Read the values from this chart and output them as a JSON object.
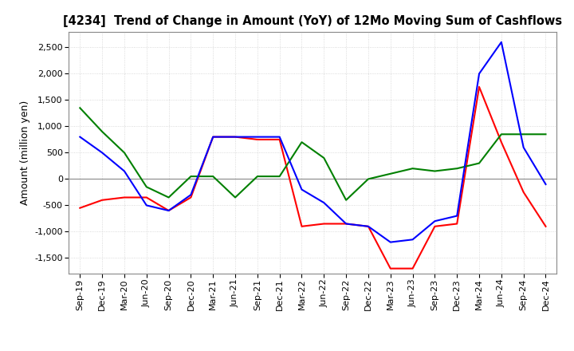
{
  "title": "[4234]  Trend of Change in Amount (YoY) of 12Mo Moving Sum of Cashflows",
  "ylabel": "Amount (million yen)",
  "ylim": [
    -1800,
    2800
  ],
  "yticks": [
    -1500,
    -1000,
    -500,
    0,
    500,
    1000,
    1500,
    2000,
    2500
  ],
  "x_labels": [
    "Sep-19",
    "Dec-19",
    "Mar-20",
    "Jun-20",
    "Sep-20",
    "Dec-20",
    "Mar-21",
    "Jun-21",
    "Sep-21",
    "Dec-21",
    "Mar-22",
    "Jun-22",
    "Sep-22",
    "Dec-22",
    "Mar-23",
    "Jun-23",
    "Sep-23",
    "Dec-23",
    "Mar-24",
    "Jun-24",
    "Sep-24",
    "Dec-24"
  ],
  "operating": [
    -550,
    -400,
    -350,
    -350,
    -600,
    -350,
    800,
    800,
    750,
    750,
    -900,
    -850,
    -850,
    -900,
    -1700,
    -1700,
    -900,
    -850,
    1750,
    700,
    -250,
    -900
  ],
  "investing": [
    1350,
    900,
    500,
    -150,
    -350,
    50,
    50,
    -350,
    50,
    50,
    700,
    400,
    -400,
    0,
    100,
    200,
    150,
    200,
    300,
    850,
    850,
    850
  ],
  "free": [
    800,
    500,
    150,
    -500,
    -600,
    -300,
    800,
    800,
    800,
    800,
    -200,
    -450,
    -850,
    -900,
    -1200,
    -1150,
    -800,
    -700,
    2000,
    2600,
    600,
    -100
  ],
  "colors": {
    "operating": "#ff0000",
    "investing": "#008000",
    "free": "#0000ff"
  },
  "background": "#ffffff",
  "grid_color": "#d0d0d0",
  "grid_linestyle": "dotted"
}
